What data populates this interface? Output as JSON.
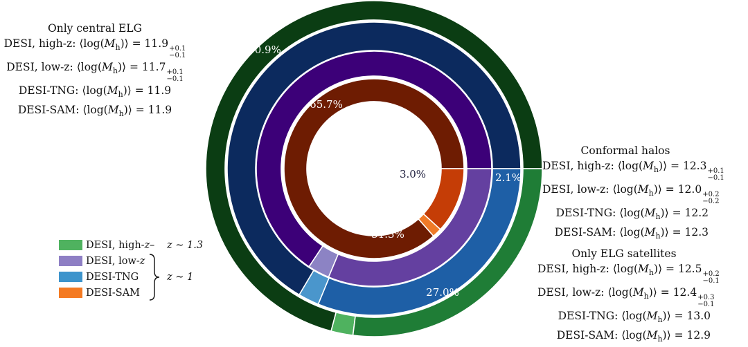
{
  "chart_data": {
    "type": "pie",
    "subtype": "nested-donut",
    "title": "",
    "rings": [
      {
        "name": "DESI, high-z",
        "color": "#2f8a3f",
        "slices": [
          {
            "category": "Only central ELG",
            "value": 70.9,
            "color": "#0b3d13",
            "label": "70.9%"
          },
          {
            "category": "Conformal halos",
            "value": 2.1,
            "color": "#4fb25f",
            "label": "2.1%"
          },
          {
            "category": "Only ELG satellites",
            "value": 27.0,
            "color": "#1f7d36",
            "label": "27.0%"
          }
        ]
      },
      {
        "name": "DESI-TNG",
        "color": "#3d8ec8",
        "slices": [
          {
            "category": "Only central ELG",
            "value": 66.5,
            "color": "#0c2a5e"
          },
          {
            "category": "Conformal halos",
            "value": 2.3,
            "color": "#4a96cc"
          },
          {
            "category": "Only ELG satellites",
            "value": 31.2,
            "color": "#1e5fa6"
          }
        ]
      },
      {
        "name": "DESI, low-z",
        "color": "#8e7fc4",
        "slices": [
          {
            "category": "Only central ELG",
            "value": 65.7,
            "color": "#3c0078",
            "label": "65.7%"
          },
          {
            "category": "Conformal halos",
            "value": 3.0,
            "color": "#8c83c4",
            "label": "3.0%"
          },
          {
            "category": "Only ELG satellites",
            "value": 31.3,
            "color": "#6440a0",
            "label": "31.3%"
          }
        ]
      },
      {
        "name": "DESI-SAM",
        "color": "#f07a28",
        "slices": [
          {
            "category": "Only central ELG",
            "value": 86.5,
            "color": "#6e1c02"
          },
          {
            "category": "Conformal halos",
            "value": 1.7,
            "color": "#ef7a27"
          },
          {
            "category": "Only ELG satellites",
            "value": 11.8,
            "color": "#c53d06"
          }
        ]
      }
    ],
    "legend": {
      "items": [
        {
          "label": "DESI, high-",
          "italic": "z",
          "color": "#4fb25f"
        },
        {
          "label": "DESI, low-",
          "italic": "z",
          "color": "#8e7fc4"
        },
        {
          "label": "DESI-TNG",
          "italic": "",
          "color": "#3d94cc"
        },
        {
          "label": "DESI-SAM",
          "italic": "",
          "color": "#f47a22"
        }
      ],
      "z_high": "z ∼ 1.3",
      "z_low": "z ∼ 1"
    },
    "annotations": [
      {
        "title": "Only central ELG",
        "lines": [
          {
            "prefix": "DESI, high-z: ⟨log(",
            "value": "11.9",
            "sup": "+0.1",
            "sub": "−0.1"
          },
          {
            "prefix": "DESI, low-z: ⟨log(",
            "value": "11.7",
            "sup": "+0.1",
            "sub": "−0.1"
          },
          {
            "prefix": "DESI-TNG: ⟨log(",
            "value": "11.9",
            "sup": "",
            "sub": ""
          },
          {
            "prefix": "DESI-SAM: ⟨log(",
            "value": "11.9",
            "sup": "",
            "sub": ""
          }
        ]
      },
      {
        "title": "Conformal halos",
        "lines": [
          {
            "prefix": "DESI, high-z: ⟨log(",
            "value": "12.3",
            "sup": "+0.1",
            "sub": "−0.1"
          },
          {
            "prefix": "DESI, low-z: ⟨log(",
            "value": "12.0",
            "sup": "+0.2",
            "sub": "−0.2"
          },
          {
            "prefix": "DESI-TNG: ⟨log(",
            "value": "12.2",
            "sup": "",
            "sub": ""
          },
          {
            "prefix": "DESI-SAM: ⟨log(",
            "value": "12.3",
            "sup": "",
            "sub": ""
          }
        ]
      },
      {
        "title": "Only ELG satellites",
        "lines": [
          {
            "prefix": "DESI, high-z: ⟨log(",
            "value": "12.5",
            "sup": "+0.2",
            "sub": "−0.1"
          },
          {
            "prefix": "DESI, low-z: ⟨log(",
            "value": "12.4",
            "sup": "+0.3",
            "sub": "−0.1"
          },
          {
            "prefix": "DESI-TNG: ⟨log(",
            "value": "13.0",
            "sup": "",
            "sub": ""
          },
          {
            "prefix": "DESI-SAM: ⟨log(",
            "value": "12.9",
            "sup": "",
            "sub": ""
          }
        ]
      }
    ],
    "mass_symbol": "M",
    "mass_subscript": "h",
    "mass_suffix": ")⟩ = "
  }
}
